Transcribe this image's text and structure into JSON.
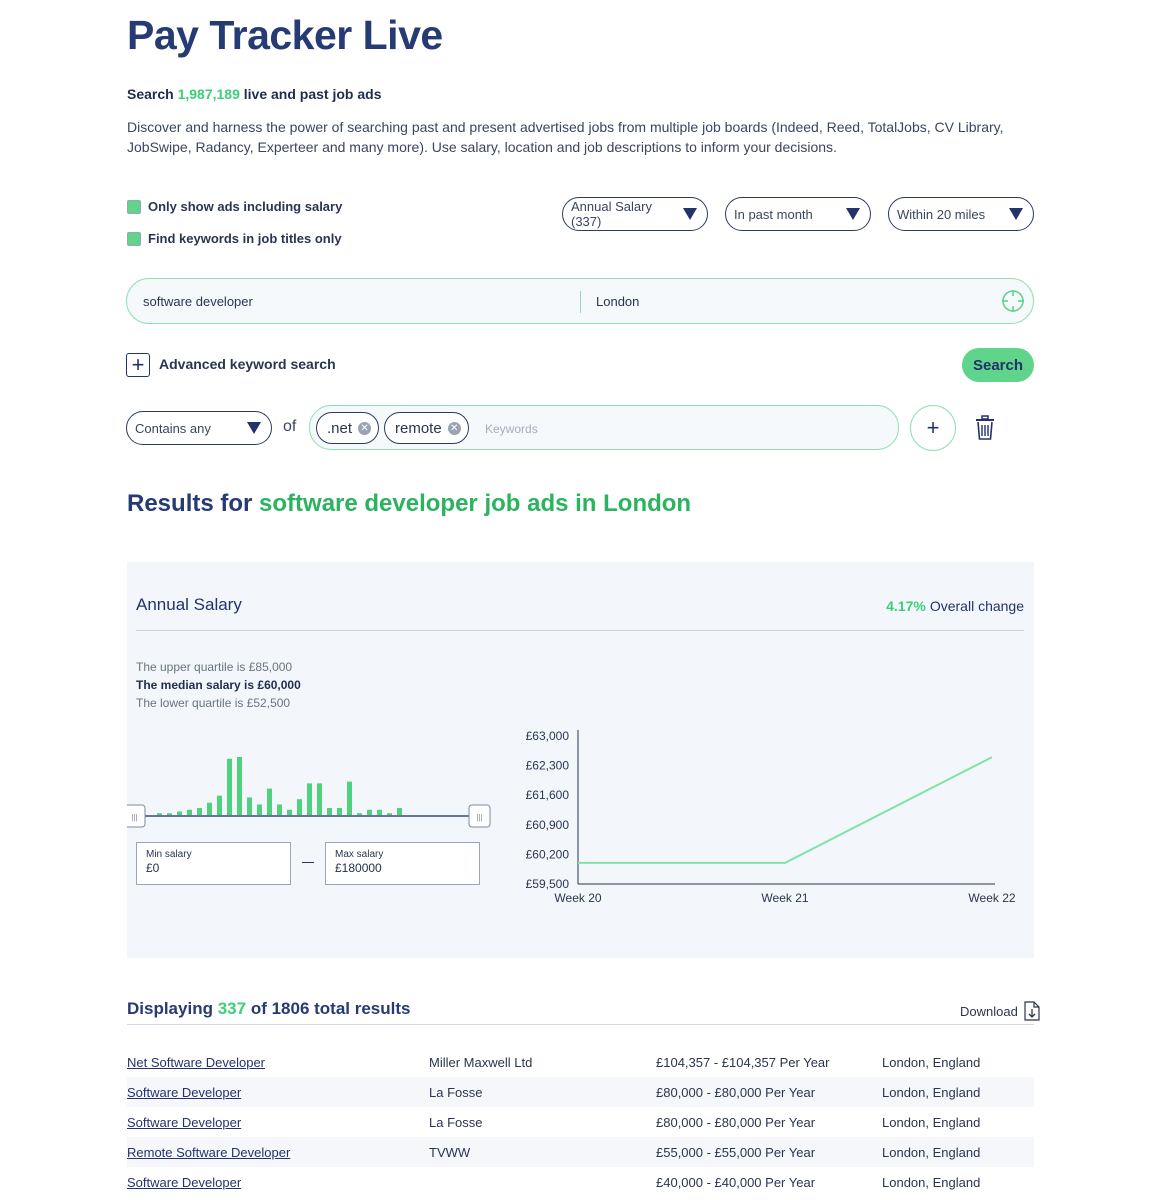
{
  "header": {
    "title": "Pay Tracker Live",
    "sub_prefix": "Search",
    "sub_count": "1,987,189",
    "sub_suffix": "live and past job ads",
    "description": "Discover and harness the power of searching past and present advertised jobs from multiple job boards (Indeed, Reed, TotalJobs, CV Library, JobSwipe, Radancy, Experteer and many more). Use salary, location and job descriptions to inform your decisions."
  },
  "filters": {
    "only_salary_label": "Only show ads including salary",
    "titles_only_label": "Find keywords in job titles only",
    "salary_type": "Annual Salary (337)",
    "period": "In past month",
    "radius": "Within 20 miles",
    "checkbox_color": "#5fd48a"
  },
  "search": {
    "keyword": "software developer",
    "location": "London",
    "advanced_label": "Advanced keyword search",
    "button_label": "Search"
  },
  "advanced": {
    "match_mode": "Contains any",
    "of_label": "of",
    "tags": [
      ".net",
      "remote"
    ],
    "keyword_placeholder": "Keywords"
  },
  "results_heading": {
    "prefix": "Results for",
    "highlight": "software developer job ads in London"
  },
  "salary_panel": {
    "title": "Annual Salary",
    "change_value": "4.17%",
    "change_label": "Overall change",
    "upper_quartile": "The upper quartile is £85,000",
    "median": "The median salary is £60,000",
    "lower_quartile": "The lower quartile is £52,500",
    "min_label": "Min salary",
    "min_value": "£0",
    "max_label": "Max salary",
    "max_value": "£180000",
    "histogram_color": "#4fd17d",
    "line_color": "#7ee3a4"
  },
  "chart_data": [
    {
      "type": "bar",
      "title": "",
      "values": [
        1,
        1,
        2,
        3,
        4,
        7,
        11,
        32,
        33,
        10,
        6,
        15,
        6,
        3,
        9,
        18,
        18,
        4,
        4,
        19,
        1,
        3,
        3,
        1,
        4
      ]
    },
    {
      "type": "line",
      "title": "",
      "x": [
        "Week 20",
        "Week 21",
        "Week 22"
      ],
      "series": [
        {
          "values": [
            60000,
            60000,
            62500
          ]
        }
      ],
      "ylim": [
        59500,
        63000
      ],
      "yticks": [
        "£63,000",
        "£62,300",
        "£61,600",
        "£60,900",
        "£60,200",
        "£59,500"
      ],
      "grid": false
    }
  ],
  "results": {
    "displaying_prefix": "Displaying",
    "displaying_count": "337",
    "displaying_suffix": "of 1806 total results",
    "download_label": "Download",
    "rows": [
      {
        "title": "Net Software Developer",
        "company": "Miller Maxwell Ltd",
        "salary": "£104,357 - £104,357 Per Year",
        "location": "London, England"
      },
      {
        "title": "Software Developer",
        "company": "La Fosse",
        "salary": "£80,000 - £80,000 Per Year",
        "location": "London, England"
      },
      {
        "title": "Software Developer",
        "company": "La Fosse",
        "salary": "£80,000 - £80,000 Per Year",
        "location": "London, England"
      },
      {
        "title": "Remote Software Developer",
        "company": "TVWW",
        "salary": "£55,000 - £55,000 Per Year",
        "location": "London, England"
      },
      {
        "title": "Software Developer",
        "company": "",
        "salary": "£40,000 - £40,000 Per Year",
        "location": "London, England"
      }
    ]
  }
}
